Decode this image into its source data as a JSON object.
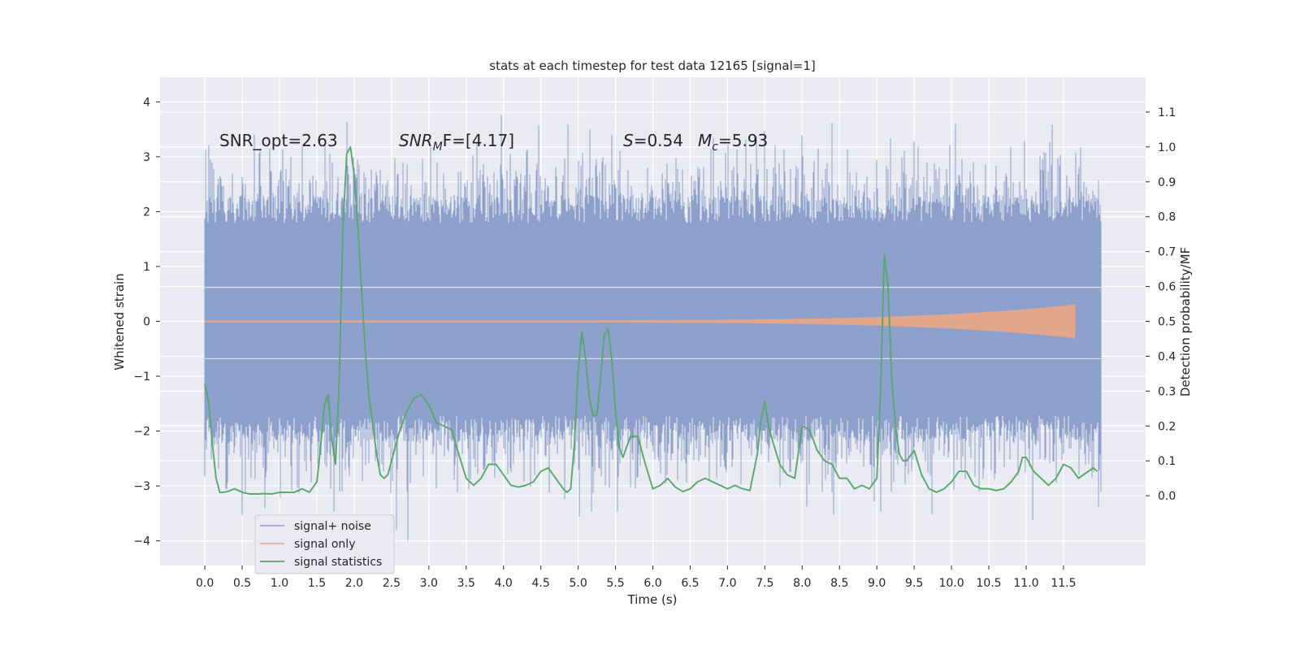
{
  "chart_data": {
    "type": "line",
    "title": "stats at each timestep for test data 12165 [signal=1]",
    "xlabel": "Time (s)",
    "ylabel_left": "Whitened strain",
    "ylabel_right": "Detection probability/MF",
    "xlim": [
      -0.6,
      12.6
    ],
    "ylim_left": [
      -4.45,
      4.45
    ],
    "ylim_right": [
      -0.2,
      1.2
    ],
    "x_ticks": [
      0.0,
      0.5,
      1.0,
      1.5,
      2.0,
      2.5,
      3.0,
      3.5,
      4.0,
      4.5,
      5.0,
      5.5,
      6.0,
      6.5,
      7.0,
      7.5,
      8.0,
      8.5,
      9.0,
      9.5,
      10.0,
      10.5,
      11.0,
      11.5
    ],
    "x_tick_labels": [
      "0.0",
      "0.5",
      "1.0",
      "1.5",
      "2.0",
      "2.5",
      "3.0",
      "3.5",
      "4.0",
      "4.5",
      "5.0",
      "5.5",
      "6.0",
      "6.5",
      "7.0",
      "7.5",
      "8.0",
      "8.5",
      "9.0",
      "9.5",
      "10.0",
      "10.5",
      "11.0",
      "11.5"
    ],
    "y_left_ticks": [
      -4,
      -3,
      -2,
      -1,
      0,
      1,
      2,
      3,
      4
    ],
    "y_left_tick_labels": [
      "−4",
      "−3",
      "−2",
      "−1",
      "0",
      "1",
      "2",
      "3",
      "4"
    ],
    "y_right_ticks": [
      0.0,
      0.1,
      0.2,
      0.3,
      0.4,
      0.5,
      0.6,
      0.7,
      0.8,
      0.9,
      1.0,
      1.1
    ],
    "y_right_tick_labels": [
      "0.0",
      "0.1",
      "0.2",
      "0.3",
      "0.4",
      "0.5",
      "0.6",
      "0.7",
      "0.8",
      "0.9",
      "1.0",
      "1.1"
    ],
    "grid": true,
    "legend_position": "lower-left",
    "annotations": {
      "snr_opt": "SNR_opt=2.63",
      "snr_mf_sym": "SNR",
      "snr_mf_sub": "M",
      "snr_mf_rest": "F=[4.17]",
      "s_sym": "S",
      "s_rest": "=0.54",
      "mc_sym": "M",
      "mc_sub": "c",
      "mc_rest": "=5.93"
    },
    "series": [
      {
        "name": "signal+ noise",
        "axis": "left",
        "color": "#8da0cb",
        "style": "dense noise band",
        "x_range": [
          0.0,
          12.0
        ],
        "core_band": [
          -1.25,
          1.25
        ],
        "typical_envelope": [
          -2.2,
          2.3
        ],
        "extremes": [
          -4.0,
          4.0
        ]
      },
      {
        "name": "signal only",
        "axis": "left",
        "color": "#e1a68b",
        "style": "chirp, amplitude growing to merger",
        "x_range": [
          0.0,
          11.65
        ],
        "amplitude_start": 0.01,
        "amplitude_peak": 0.3,
        "peak_time": 11.65
      },
      {
        "name": "signal statistics",
        "axis": "right",
        "color": "#55a868",
        "x": [
          0.0,
          0.05,
          0.1,
          0.15,
          0.2,
          0.25,
          0.3,
          0.4,
          0.5,
          0.6,
          0.7,
          0.8,
          0.9,
          1.0,
          1.1,
          1.2,
          1.3,
          1.4,
          1.5,
          1.55,
          1.6,
          1.65,
          1.7,
          1.75,
          1.8,
          1.85,
          1.9,
          1.95,
          2.0,
          2.05,
          2.1,
          2.15,
          2.2,
          2.25,
          2.3,
          2.35,
          2.4,
          2.45,
          2.5,
          2.6,
          2.7,
          2.8,
          2.9,
          3.0,
          3.1,
          3.2,
          3.3,
          3.4,
          3.5,
          3.6,
          3.7,
          3.8,
          3.9,
          4.0,
          4.1,
          4.2,
          4.3,
          4.4,
          4.5,
          4.6,
          4.7,
          4.8,
          4.85,
          4.9,
          4.95,
          5.0,
          5.05,
          5.1,
          5.15,
          5.2,
          5.25,
          5.3,
          5.35,
          5.4,
          5.45,
          5.5,
          5.55,
          5.6,
          5.7,
          5.8,
          5.9,
          6.0,
          6.1,
          6.2,
          6.3,
          6.4,
          6.5,
          6.6,
          6.7,
          6.8,
          6.9,
          7.0,
          7.1,
          7.2,
          7.3,
          7.4,
          7.45,
          7.5,
          7.55,
          7.6,
          7.7,
          7.8,
          7.9,
          8.0,
          8.1,
          8.2,
          8.3,
          8.4,
          8.5,
          8.6,
          8.7,
          8.8,
          8.9,
          9.0,
          9.05,
          9.1,
          9.15,
          9.2,
          9.25,
          9.3,
          9.35,
          9.4,
          9.5,
          9.6,
          9.7,
          9.8,
          9.9,
          10.0,
          10.1,
          10.2,
          10.3,
          10.4,
          10.5,
          10.6,
          10.7,
          10.8,
          10.9,
          10.95,
          11.0,
          11.05,
          11.1,
          11.2,
          11.3,
          11.4,
          11.5,
          11.6,
          11.7,
          11.8,
          11.9,
          11.95
        ],
        "values": [
          0.32,
          0.27,
          0.15,
          0.05,
          0.01,
          0.01,
          0.012,
          0.02,
          0.01,
          0.005,
          0.005,
          0.006,
          0.005,
          0.01,
          0.01,
          0.01,
          0.02,
          0.01,
          0.04,
          0.14,
          0.26,
          0.29,
          0.16,
          0.09,
          0.33,
          0.77,
          0.98,
          1.0,
          0.92,
          0.77,
          0.59,
          0.41,
          0.28,
          0.2,
          0.12,
          0.06,
          0.05,
          0.06,
          0.1,
          0.18,
          0.24,
          0.28,
          0.29,
          0.26,
          0.21,
          0.2,
          0.19,
          0.12,
          0.05,
          0.03,
          0.05,
          0.09,
          0.09,
          0.06,
          0.03,
          0.025,
          0.03,
          0.04,
          0.07,
          0.08,
          0.05,
          0.02,
          0.01,
          0.02,
          0.15,
          0.36,
          0.47,
          0.39,
          0.28,
          0.23,
          0.23,
          0.34,
          0.46,
          0.48,
          0.39,
          0.24,
          0.14,
          0.11,
          0.17,
          0.17,
          0.09,
          0.02,
          0.03,
          0.05,
          0.025,
          0.012,
          0.02,
          0.04,
          0.05,
          0.04,
          0.03,
          0.02,
          0.03,
          0.02,
          0.015,
          0.12,
          0.22,
          0.27,
          0.2,
          0.16,
          0.09,
          0.06,
          0.05,
          0.2,
          0.19,
          0.13,
          0.1,
          0.09,
          0.05,
          0.05,
          0.02,
          0.03,
          0.02,
          0.05,
          0.3,
          0.69,
          0.6,
          0.33,
          0.2,
          0.12,
          0.1,
          0.1,
          0.13,
          0.06,
          0.02,
          0.01,
          0.02,
          0.04,
          0.07,
          0.07,
          0.03,
          0.02,
          0.02,
          0.015,
          0.02,
          0.04,
          0.07,
          0.11,
          0.11,
          0.09,
          0.07,
          0.05,
          0.03,
          0.05,
          0.09,
          0.08,
          0.05,
          0.065,
          0.08,
          0.07
        ]
      }
    ]
  }
}
